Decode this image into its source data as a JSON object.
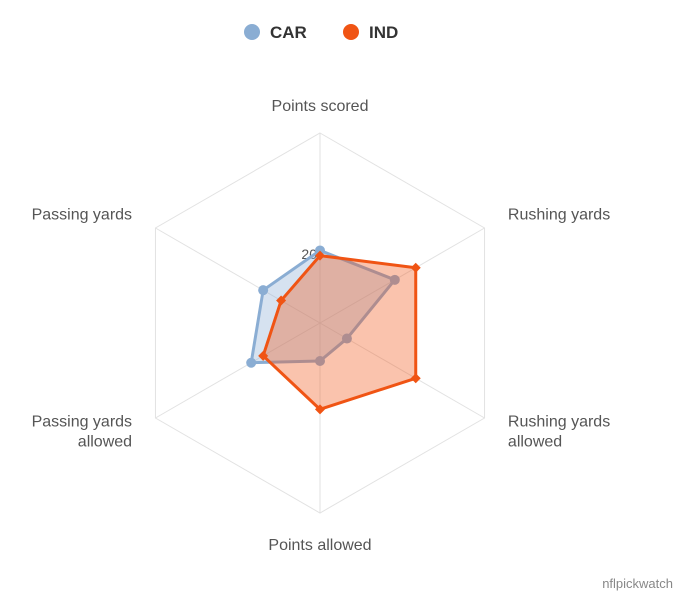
{
  "chart_data": {
    "type": "radar",
    "axes": [
      "Points scored",
      "Rushing yards",
      "Rushing yards\nallowed",
      "Points allowed",
      "Passing yards\nallowed",
      "Passing yards"
    ],
    "r_max": 55,
    "r_ticks": [
      20
    ],
    "series": [
      {
        "name": "CAR",
        "color": "#8aadd3",
        "marker": "circle",
        "values": [
          21,
          25,
          9,
          11,
          23,
          19
        ]
      },
      {
        "name": "IND",
        "color": "#f05414",
        "marker": "diamond",
        "values": [
          19.5,
          32,
          32,
          25,
          19,
          13
        ]
      }
    ],
    "legend_position": "top-center",
    "grid": true
  },
  "credit": "nflpickwatch"
}
